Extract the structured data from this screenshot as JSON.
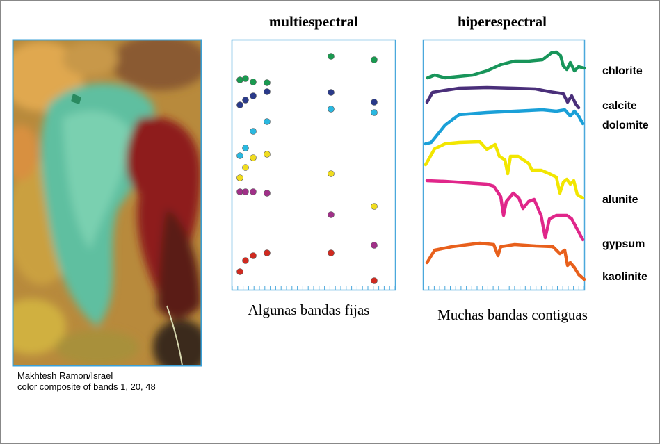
{
  "figure": {
    "image_caption": [
      "Makhtesh Ramon/Israel",
      "color composite of bands 1, 20, 48"
    ],
    "multispectral": {
      "title": "multiespectral",
      "caption": "Algunas bandas fijas"
    },
    "hyperspectral": {
      "title": "hiperespectral",
      "caption": "Muchas bandas contiguas",
      "labels": [
        "chlorite",
        "calcite",
        "dolomite",
        "alunite",
        "gypsum",
        "kaolinite"
      ]
    }
  }
}
